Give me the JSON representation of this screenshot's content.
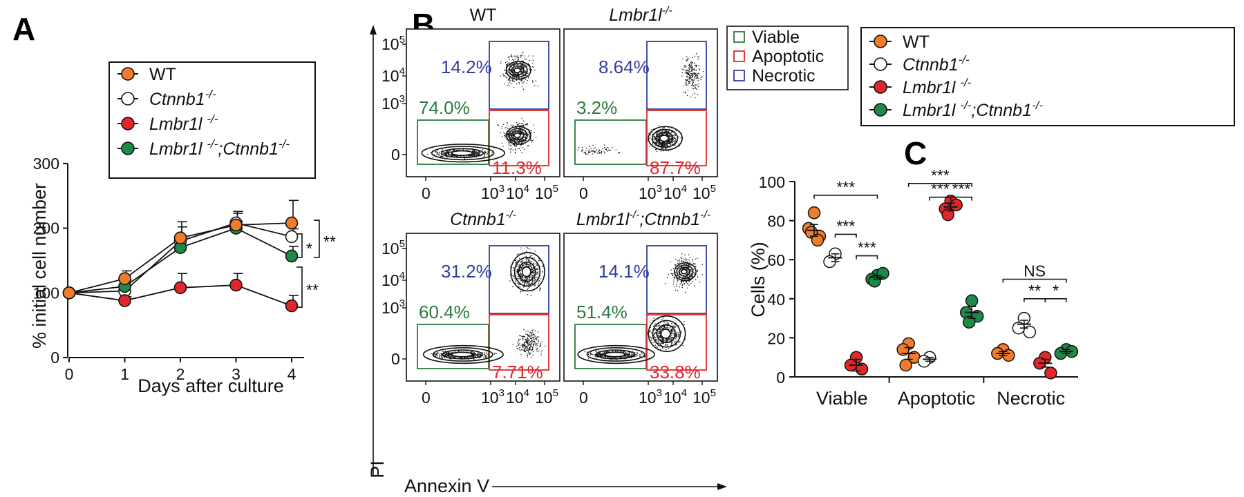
{
  "figure": {
    "panel_labels": [
      "A",
      "B",
      "C"
    ]
  },
  "colors": {
    "wt": "#f07c2c",
    "ctnnb1": "#ffffff",
    "lmbr1l": "#e3262b",
    "double": "#1d8a4a",
    "viable": "#2a7a3c",
    "apoptotic": "#e0262b",
    "necrotic": "#2f3ea0"
  },
  "legend": {
    "items": [
      {
        "key": "wt",
        "label": "WT",
        "sup": ""
      },
      {
        "key": "ctnnb1",
        "label": "Ctnnb1",
        "sup": "-/-"
      },
      {
        "key": "lmbr1l",
        "label": "Lmbr1l ",
        "sup": "-/-"
      },
      {
        "key": "double",
        "label": "Lmbr1l ",
        "sup": "-/-",
        "label2": ";Ctnnb1",
        "sup2": "-/-"
      }
    ]
  },
  "flow_legend": [
    {
      "label": "Viable",
      "color_key": "viable"
    },
    {
      "label": "Apoptotic",
      "color_key": "apoptotic"
    },
    {
      "label": "Necrotic",
      "color_key": "necrotic"
    }
  ],
  "flow": {
    "y_axis_label": "PI",
    "x_axis_label": "Annexin V",
    "x_ticks": [
      {
        "base": "0",
        "exp": ""
      },
      {
        "base": "10",
        "exp": "3"
      },
      {
        "base": "10",
        "exp": "4"
      },
      {
        "base": "10",
        "exp": "5"
      }
    ],
    "y_ticks": [
      {
        "base": "0",
        "exp": ""
      },
      {
        "base": "10",
        "exp": "3"
      },
      {
        "base": "10",
        "exp": "4"
      },
      {
        "base": "10",
        "exp": "5"
      }
    ],
    "plots": [
      {
        "title": "WT",
        "title_sup": "",
        "title_suffix": "",
        "title_sup2": "",
        "title_italic": false,
        "necrotic": "14.2%",
        "viable": "74.0%",
        "apoptotic": "11.3%"
      },
      {
        "title": "Lmbr1l",
        "title_sup": "-/-",
        "title_suffix": "",
        "title_sup2": "",
        "title_italic": true,
        "necrotic": "8.64%",
        "viable": "3.2%",
        "apoptotic": "87.7%"
      },
      {
        "title": "Ctnnb1",
        "title_sup": "-/-",
        "title_suffix": "",
        "title_sup2": "",
        "title_italic": true,
        "necrotic": "31.2%",
        "viable": "60.4%",
        "apoptotic": "7.71%"
      },
      {
        "title": "Lmbr1l",
        "title_sup": "-/-",
        "title_suffix": ";Ctnnb1",
        "title_sup2": "-/-",
        "title_italic": true,
        "necrotic": "14.1%",
        "viable": "51.4%",
        "apoptotic": "33.8%"
      }
    ]
  },
  "chart_data": [
    {
      "id": "A",
      "type": "line",
      "title": "",
      "xlabel": "Days after culture",
      "ylabel": "% initial cell number",
      "x": [
        0,
        1,
        2,
        3,
        4
      ],
      "xticks": [
        "0",
        "1",
        "2",
        "3",
        "4"
      ],
      "yticks": [
        "0",
        "100",
        "200",
        "300"
      ],
      "ylim": [
        0,
        300
      ],
      "series": [
        {
          "name": "WT",
          "key": "wt",
          "values": [
            100,
            122,
            185,
            205,
            208
          ],
          "err": [
            0,
            12,
            25,
            18,
            35
          ]
        },
        {
          "name": "Ctnnb1-/-",
          "key": "ctnnb1",
          "values": [
            100,
            103,
            180,
            208,
            187
          ],
          "err": [
            0,
            8,
            22,
            18,
            12
          ]
        },
        {
          "name": "Lmbr1l -/-",
          "key": "lmbr1l",
          "values": [
            100,
            88,
            108,
            112,
            80
          ],
          "err": [
            0,
            6,
            22,
            18,
            16
          ]
        },
        {
          "name": "Lmbr1l -/-;Ctnnb1-/-",
          "key": "double",
          "values": [
            100,
            110,
            170,
            200,
            157
          ],
          "err": [
            0,
            10,
            18,
            10,
            15
          ]
        }
      ],
      "significance": [
        {
          "label": "*",
          "from_key": "ctnnb1",
          "to_key": "double"
        },
        {
          "label": "**",
          "from_key": "wt",
          "to_key": "double"
        },
        {
          "label": "**",
          "from_key": "double",
          "to_key": "lmbr1l"
        }
      ]
    },
    {
      "id": "C",
      "type": "scatter",
      "title": "",
      "xlabel": "",
      "ylabel": "Cells (%)",
      "categories": [
        "Viable",
        "Apoptotic",
        "Necrotic"
      ],
      "yticks": [
        "0",
        "20",
        "40",
        "60",
        "80",
        "100"
      ],
      "ylim": [
        0,
        100
      ],
      "groups": [
        {
          "category": "Viable",
          "key": "wt",
          "points": [
            84,
            76,
            72,
            74,
            70
          ],
          "mean": 75,
          "sem": 3
        },
        {
          "category": "Viable",
          "key": "ctnnb1",
          "points": [
            63,
            59
          ],
          "mean": 61,
          "sem": 2
        },
        {
          "category": "Viable",
          "key": "lmbr1l",
          "points": [
            10,
            6,
            4
          ],
          "mean": 6,
          "sem": 3
        },
        {
          "category": "Viable",
          "key": "double",
          "points": [
            52,
            50,
            53,
            49
          ],
          "mean": 51,
          "sem": 1
        },
        {
          "category": "Apoptotic",
          "key": "wt",
          "points": [
            17,
            14,
            10,
            6
          ],
          "mean": 12,
          "sem": 3
        },
        {
          "category": "Apoptotic",
          "key": "ctnnb1",
          "points": [
            10,
            8
          ],
          "mean": 9,
          "sem": 1
        },
        {
          "category": "Apoptotic",
          "key": "lmbr1l",
          "points": [
            90,
            86,
            88,
            83
          ],
          "mean": 87,
          "sem": 2
        },
        {
          "category": "Apoptotic",
          "key": "double",
          "points": [
            39,
            33,
            31,
            28
          ],
          "mean": 33,
          "sem": 3
        },
        {
          "category": "Necrotic",
          "key": "wt",
          "points": [
            14,
            12,
            11
          ],
          "mean": 12,
          "sem": 1
        },
        {
          "category": "Necrotic",
          "key": "ctnnb1",
          "points": [
            30,
            25,
            23
          ],
          "mean": 27,
          "sem": 2
        },
        {
          "category": "Necrotic",
          "key": "lmbr1l",
          "points": [
            10,
            7,
            2
          ],
          "mean": 7,
          "sem": 2
        },
        {
          "category": "Necrotic",
          "key": "double",
          "points": [
            14,
            12,
            13
          ],
          "mean": 13,
          "sem": 1
        }
      ],
      "significance": [
        {
          "label": "***",
          "category": "Viable",
          "from": 0,
          "to": 3,
          "level": 93
        },
        {
          "label": "***",
          "category": "Viable",
          "from": 1,
          "to": 2,
          "level": 73
        },
        {
          "label": "***",
          "category": "Viable",
          "from": 2,
          "to": 3,
          "level": 62
        },
        {
          "label": "***",
          "category": "Apoptotic",
          "from": 0,
          "to": 3,
          "level": 99
        },
        {
          "label": "***",
          "category": "Apoptotic",
          "from": 1,
          "to": 2,
          "level": 92
        },
        {
          "label": "***",
          "category": "Apoptotic",
          "from": 2,
          "to": 3,
          "level": 92
        },
        {
          "label": "NS",
          "category": "Necrotic",
          "from": 0,
          "to": 3,
          "level": 50
        },
        {
          "label": "**",
          "category": "Necrotic",
          "from": 1,
          "to": 2,
          "level": 40
        },
        {
          "label": "*",
          "category": "Necrotic",
          "from": 2,
          "to": 3,
          "level": 40
        }
      ]
    }
  ]
}
